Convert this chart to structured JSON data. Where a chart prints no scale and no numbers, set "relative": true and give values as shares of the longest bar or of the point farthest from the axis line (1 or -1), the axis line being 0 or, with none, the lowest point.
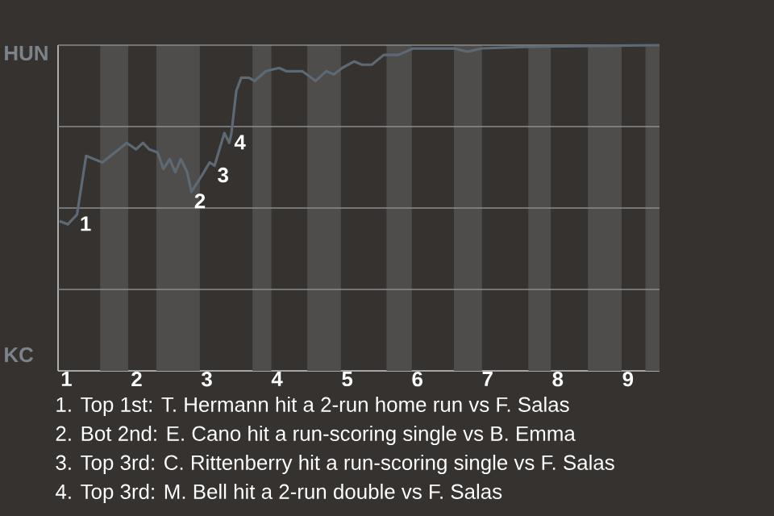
{
  "chart_data": {
    "type": "line",
    "relative": true,
    "x": [
      0.9,
      1.02,
      1.15,
      1.28,
      1.51,
      1.86,
      1.99,
      2.09,
      2.18,
      2.3,
      2.38,
      2.47,
      2.55,
      2.63,
      2.72,
      2.78,
      2.93,
      3.04,
      3.11,
      3.25,
      3.32,
      3.35,
      3.42,
      3.49,
      3.6,
      3.68,
      3.84,
      4.03,
      4.13,
      4.36,
      4.55,
      4.7,
      4.81,
      4.93,
      5.1,
      5.21,
      5.35,
      5.52,
      5.73,
      5.94,
      6.13,
      6.52,
      6.71,
      6.92,
      7.63,
      9.45
    ],
    "series": [
      {
        "color": "#5d6a75",
        "values": [
          0.46,
          0.45,
          0.48,
          0.66,
          0.64,
          0.7,
          0.68,
          0.7,
          0.68,
          0.67,
          0.62,
          0.65,
          0.61,
          0.65,
          0.61,
          0.55,
          0.6,
          0.64,
          0.63,
          0.73,
          0.7,
          0.73,
          0.86,
          0.9,
          0.9,
          0.89,
          0.92,
          0.93,
          0.92,
          0.92,
          0.89,
          0.92,
          0.91,
          0.93,
          0.95,
          0.94,
          0.94,
          0.97,
          0.97,
          0.99,
          0.99,
          0.99,
          0.98,
          0.99,
          0.995,
          1.0
        ]
      }
    ],
    "xlim": [
      0.88,
      9.45
    ],
    "xticks": [
      1,
      2,
      3,
      4,
      5,
      6,
      7,
      8,
      9
    ],
    "grid": "y",
    "marker": "none",
    "line_style": "solid",
    "bands": [
      {
        "axis": "x",
        "from": 1.48,
        "to": 1.88,
        "color": "#4f4d4b"
      },
      {
        "axis": "x",
        "from": 2.28,
        "to": 2.9,
        "color": "#4f4d4b"
      },
      {
        "axis": "x",
        "from": 3.65,
        "to": 3.92,
        "color": "#4f4d4b"
      },
      {
        "axis": "x",
        "from": 4.43,
        "to": 4.91,
        "color": "#4f4d4b"
      },
      {
        "axis": "x",
        "from": 5.56,
        "to": 5.92,
        "color": "#4f4d4b"
      },
      {
        "axis": "x",
        "from": 6.52,
        "to": 6.92,
        "color": "#4f4d4b"
      },
      {
        "axis": "x",
        "from": 7.58,
        "to": 7.9,
        "color": "#4f4d4b"
      },
      {
        "axis": "x",
        "from": 8.43,
        "to": 8.91,
        "color": "#4f4d4b"
      },
      {
        "axis": "x",
        "from": 9.25,
        "to": 9.45,
        "color": "#4f4d4b"
      }
    ],
    "annotations": [
      "HUN",
      "KC",
      {
        "text": "1",
        "x": 1.15,
        "y": 0.48
      },
      {
        "text": "2",
        "x": 2.78,
        "y": 0.55
      },
      {
        "text": "3",
        "x": 3.11,
        "y": 0.63
      },
      {
        "text": "4",
        "x": 3.35,
        "y": 0.73
      },
      "1. Top 1st: T. Hermann hit a 2-run home run vs F. Salas",
      "2. Bot 2nd: E. Cano hit a run-scoring single vs B. Emma",
      "3. Top 3rd: C. Rittenberry hit a run-scoring single vs F. Salas",
      "4. Top 3rd: M. Bell hit a 2-run double vs F. Salas"
    ]
  }
}
